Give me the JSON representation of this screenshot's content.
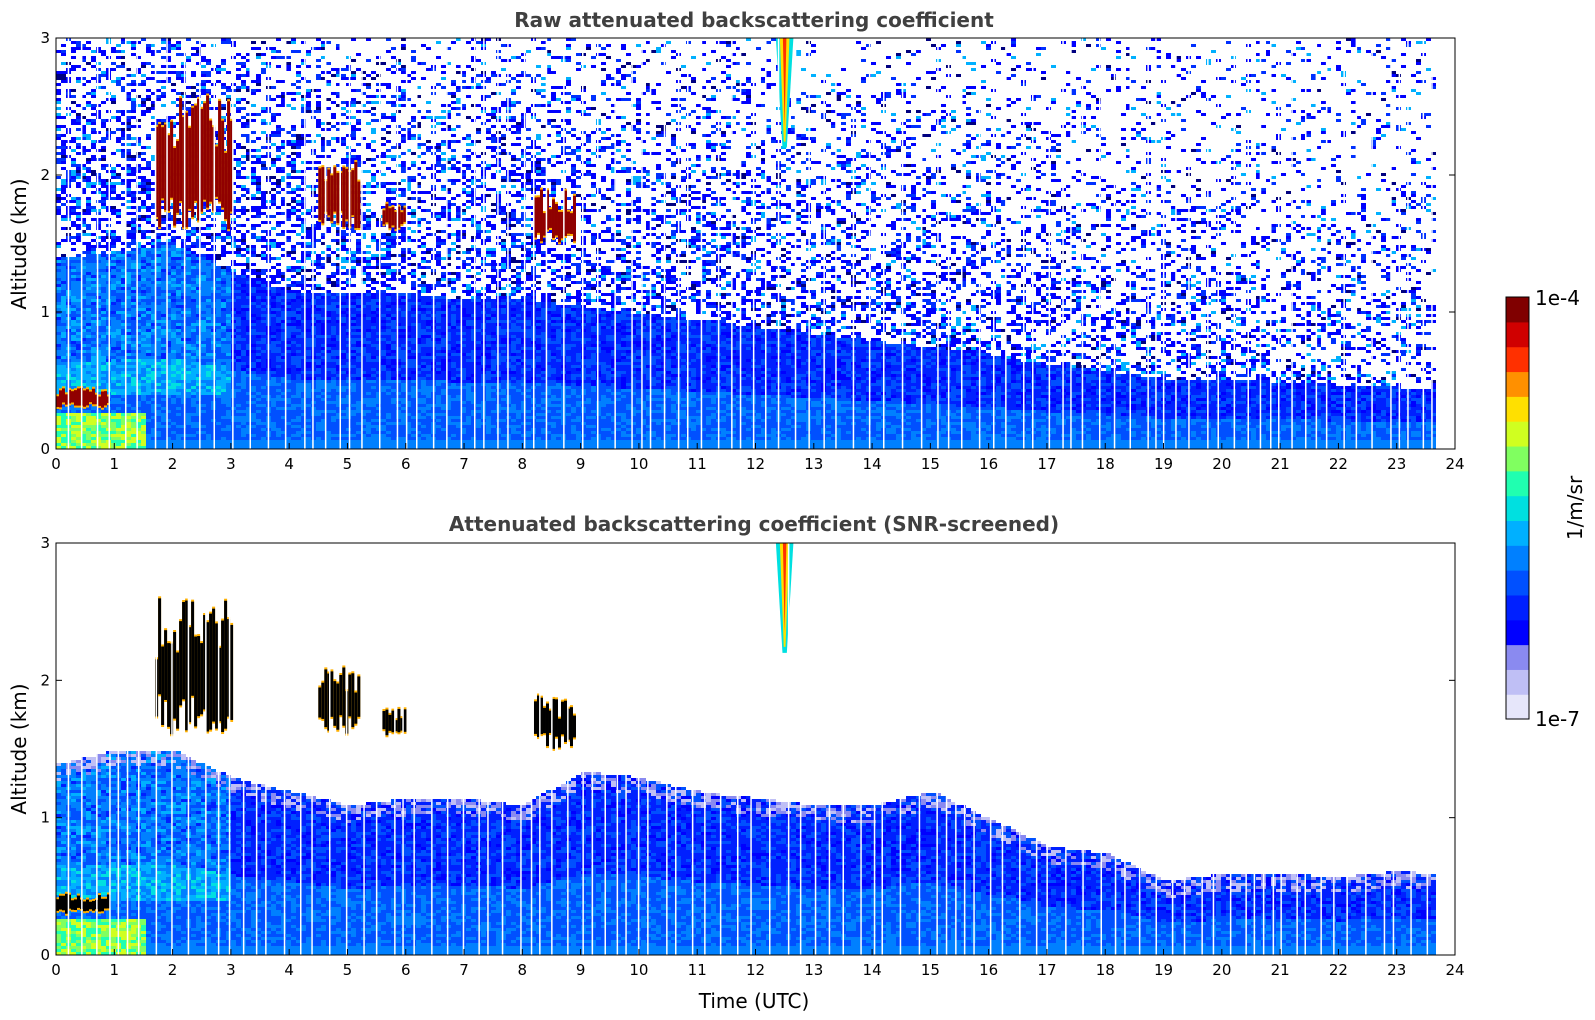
{
  "chart_data": [
    {
      "type": "heatmap",
      "title": "Raw attenuated backscattering coefficient",
      "xlabel": "",
      "ylabel": "Altitude (km)",
      "xlim": [
        0,
        24
      ],
      "ylim": [
        0,
        3
      ],
      "x_ticks": [
        "0",
        "1",
        "2",
        "3",
        "4",
        "5",
        "6",
        "7",
        "8",
        "9",
        "10",
        "11",
        "12",
        "13",
        "14",
        "15",
        "16",
        "17",
        "18",
        "19",
        "20",
        "21",
        "22",
        "23",
        "24"
      ],
      "y_ticks": [
        "0",
        "1",
        "2",
        "3"
      ],
      "data_end_time": 23.6,
      "noise_level": "high",
      "boundary_layer_top_km": [
        [
          0,
          1.4
        ],
        [
          1,
          1.45
        ],
        [
          2,
          1.5
        ],
        [
          3,
          1.3
        ],
        [
          4,
          1.15
        ],
        [
          5,
          1.15
        ],
        [
          6,
          1.15
        ],
        [
          7,
          1.1
        ],
        [
          8,
          1.1
        ],
        [
          9,
          1.05
        ],
        [
          10,
          1.0
        ],
        [
          11,
          0.95
        ],
        [
          12,
          0.9
        ],
        [
          13,
          0.85
        ],
        [
          14,
          0.8
        ],
        [
          15,
          0.75
        ],
        [
          16,
          0.7
        ],
        [
          17,
          0.62
        ],
        [
          18,
          0.58
        ],
        [
          19,
          0.52
        ],
        [
          20,
          0.52
        ],
        [
          21,
          0.5
        ],
        [
          22,
          0.48
        ],
        [
          23,
          0.46
        ],
        [
          23.6,
          0.45
        ]
      ],
      "cloud_features": [
        {
          "time_range": [
            1.7,
            3.0
          ],
          "altitude_km": [
            1.6,
            2.6
          ],
          "intensity": "max"
        },
        {
          "time_range": [
            4.5,
            5.2
          ],
          "altitude_km": [
            1.6,
            2.1
          ],
          "intensity": "max"
        },
        {
          "time_range": [
            5.6,
            6.0
          ],
          "altitude_km": [
            1.6,
            1.8
          ],
          "intensity": "max"
        },
        {
          "time_range": [
            8.2,
            8.9
          ],
          "altitude_km": [
            1.5,
            1.9
          ],
          "intensity": "max"
        },
        {
          "time_range": [
            0.0,
            0.9
          ],
          "altitude_km": [
            0.3,
            0.45
          ],
          "intensity": "max"
        },
        {
          "time_range": [
            12.35,
            12.65
          ],
          "altitude_km": [
            2.2,
            3.0
          ],
          "intensity": "plume"
        }
      ]
    },
    {
      "type": "heatmap",
      "title": "Attenuated backscattering coefficient (SNR-screened)",
      "xlabel": "Time (UTC)",
      "ylabel": "Altitude (km)",
      "xlim": [
        0,
        24
      ],
      "ylim": [
        0,
        3
      ],
      "x_ticks": [
        "0",
        "1",
        "2",
        "3",
        "4",
        "5",
        "6",
        "7",
        "8",
        "9",
        "10",
        "11",
        "12",
        "13",
        "14",
        "15",
        "16",
        "17",
        "18",
        "19",
        "20",
        "21",
        "22",
        "23",
        "24"
      ],
      "y_ticks": [
        "0",
        "1",
        "2",
        "3"
      ],
      "data_end_time": 23.6,
      "noise_level": "screened",
      "boundary_layer_top_km": [
        [
          0,
          1.4
        ],
        [
          1,
          1.5
        ],
        [
          2,
          1.5
        ],
        [
          3,
          1.3
        ],
        [
          4,
          1.2
        ],
        [
          5,
          1.1
        ],
        [
          6,
          1.15
        ],
        [
          7,
          1.15
        ],
        [
          8,
          1.1
        ],
        [
          9,
          1.35
        ],
        [
          10,
          1.3
        ],
        [
          11,
          1.2
        ],
        [
          12,
          1.15
        ],
        [
          13,
          1.1
        ],
        [
          14,
          1.1
        ],
        [
          15,
          1.2
        ],
        [
          16,
          1.0
        ],
        [
          17,
          0.8
        ],
        [
          18,
          0.75
        ],
        [
          19,
          0.55
        ],
        [
          20,
          0.6
        ],
        [
          21,
          0.6
        ],
        [
          22,
          0.58
        ],
        [
          23,
          0.62
        ],
        [
          23.6,
          0.6
        ]
      ],
      "cloud_features": [
        {
          "time_range": [
            1.7,
            3.0
          ],
          "altitude_km": [
            1.6,
            2.6
          ],
          "intensity": "black"
        },
        {
          "time_range": [
            4.5,
            5.2
          ],
          "altitude_km": [
            1.6,
            2.1
          ],
          "intensity": "black"
        },
        {
          "time_range": [
            5.6,
            6.0
          ],
          "altitude_km": [
            1.6,
            1.8
          ],
          "intensity": "black"
        },
        {
          "time_range": [
            8.2,
            8.9
          ],
          "altitude_km": [
            1.5,
            1.9
          ],
          "intensity": "black"
        },
        {
          "time_range": [
            0.0,
            0.9
          ],
          "altitude_km": [
            0.3,
            0.45
          ],
          "intensity": "black"
        },
        {
          "time_range": [
            12.35,
            12.65
          ],
          "altitude_km": [
            2.2,
            3.0
          ],
          "intensity": "plume"
        }
      ]
    }
  ],
  "colorbar": {
    "label": "1/m/sr",
    "max_label": "1e-4",
    "min_label": "1e-7",
    "colors": [
      "#e6e6fa",
      "#bfbff5",
      "#8a8af0",
      "#0000ff",
      "#0020ff",
      "#0050ff",
      "#0080ff",
      "#00b0ff",
      "#00e0e0",
      "#20ffb0",
      "#80ff60",
      "#d0ff20",
      "#ffe000",
      "#ff9000",
      "#ff3000",
      "#d00000",
      "#800000"
    ]
  }
}
